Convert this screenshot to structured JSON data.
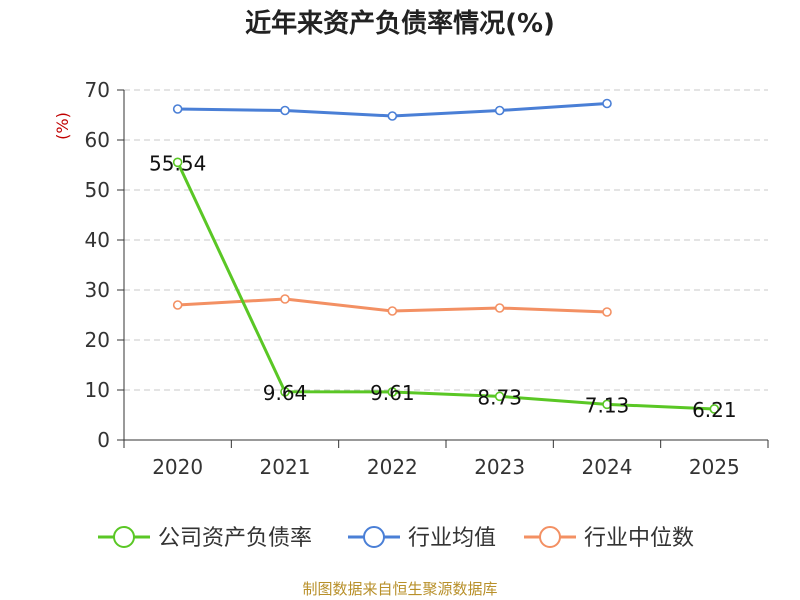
{
  "chart_data": {
    "type": "line",
    "title": "近年来资产负债率情况(%)",
    "ylabel": "(%)",
    "xlabel": "",
    "categories": [
      "2020",
      "2021",
      "2022",
      "2023",
      "2024",
      "2025"
    ],
    "ylim": [
      0,
      70
    ],
    "yticks": [
      0,
      10,
      20,
      30,
      40,
      50,
      60,
      70
    ],
    "grid": true,
    "legend_position": "bottom",
    "series": [
      {
        "name": "公司资产负债率",
        "color": "#5ac725",
        "values": [
          55.54,
          9.64,
          9.61,
          8.73,
          7.13,
          6.21
        ],
        "labels": [
          "55.54",
          "9.64",
          "9.61",
          "8.73",
          "7.13",
          "6.21"
        ]
      },
      {
        "name": "行业均值",
        "color": "#4a7fd6",
        "values": [
          66.2,
          65.9,
          64.8,
          65.9,
          67.3,
          null
        ]
      },
      {
        "name": "行业中位数",
        "color": "#f39063",
        "values": [
          27.0,
          28.2,
          25.8,
          26.4,
          25.6,
          null
        ]
      }
    ],
    "source": "制图数据来自恒生聚源数据库"
  }
}
